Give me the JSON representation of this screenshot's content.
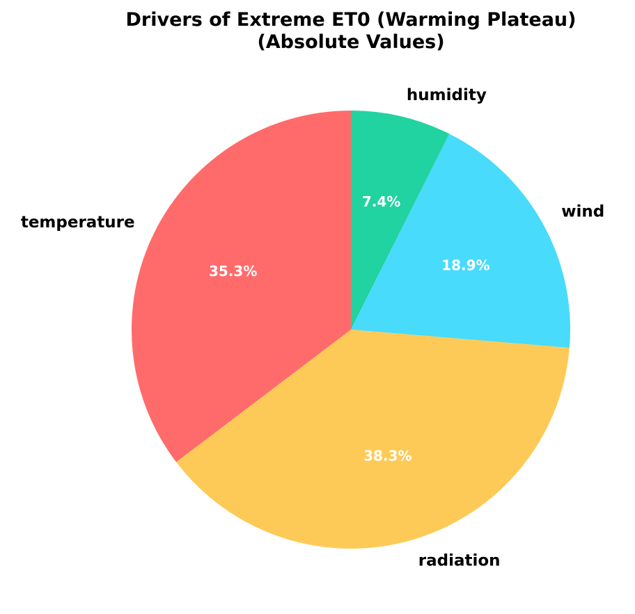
{
  "chart_data": {
    "type": "pie",
    "title": "Drivers of Extreme ET0 (Warming Plateau)",
    "subtitle": "(Absolute Values)",
    "start_angle_deg": 90,
    "direction": "clockwise",
    "slices": [
      {
        "label": "humidity",
        "value": 7.4,
        "pct_label": "7.4%",
        "color": "#20d3a1"
      },
      {
        "label": "wind",
        "value": 18.9,
        "pct_label": "18.9%",
        "color": "#48dbfc"
      },
      {
        "label": "radiation",
        "value": 38.3,
        "pct_label": "38.3%",
        "color": "#feca57"
      },
      {
        "label": "temperature",
        "value": 35.3,
        "pct_label": "35.3%",
        "color": "#ff6b6b"
      }
    ]
  }
}
